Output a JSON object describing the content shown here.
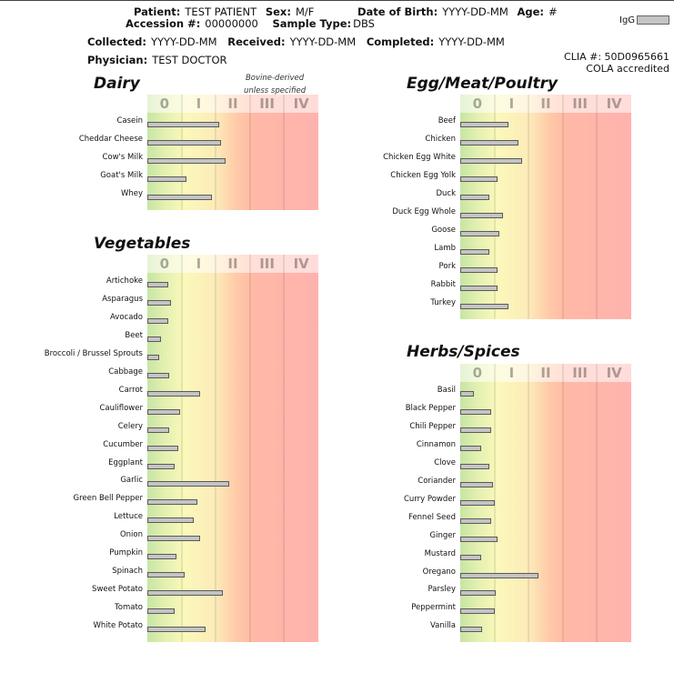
{
  "header": {
    "patient_label": "Patient:",
    "patient": "TEST PATIENT",
    "sex_label": "Sex:",
    "sex": "M/F",
    "dob_label": "Date of Birth:",
    "dob": "YYYY-DD-MM",
    "age_label": "Age:",
    "age": "#",
    "accession_label": "Accession #:",
    "accession": "00000000",
    "sample_type_label": "Sample Type:",
    "sample_type": "DBS",
    "collected_label": "Collected:",
    "collected": "YYYY-DD-MM",
    "received_label": "Received:",
    "received": "YYYY-DD-MM",
    "completed_label": "Completed:",
    "completed": "YYYY-DD-MM",
    "physician_label": "Physician:",
    "physician": "TEST DOCTOR",
    "legend_label": "IgG",
    "clia": "CLIA #: 50D0965661",
    "cola": "COLA accredited"
  },
  "colors": {
    "bar_fill": "#c4c4c4",
    "bar_border": "#5a5a5a",
    "class_0": "#c6e5a4",
    "class_i": "#fbf8ba",
    "class_ii": "#fcebb9",
    "class_iii_iv": "#ffb2ae"
  },
  "chart_data": [
    {
      "type": "bar",
      "title": "Dairy",
      "note": [
        "Bovine-derived",
        "unless specified"
      ],
      "classes": [
        "0",
        "I",
        "II",
        "III",
        "IV"
      ],
      "xlim": [
        0,
        5
      ],
      "series_name": "IgG",
      "categories": [
        "Casein",
        "Cheddar Cheese",
        "Cow's Milk",
        "Goat's Milk",
        "Whey"
      ],
      "values": [
        2.1,
        2.15,
        2.3,
        1.15,
        1.9
      ]
    },
    {
      "type": "bar",
      "title": "Egg/Meat/Poultry",
      "classes": [
        "0",
        "I",
        "II",
        "III",
        "IV"
      ],
      "xlim": [
        0,
        5
      ],
      "series_name": "IgG",
      "categories": [
        "Beef",
        "Chicken",
        "Chicken Egg White",
        "Chicken Egg Yolk",
        "Duck",
        "Duck Egg Whole",
        "Goose",
        "Lamb",
        "Pork",
        "Rabbit",
        "Turkey"
      ],
      "values": [
        1.4,
        1.7,
        1.8,
        1.1,
        0.85,
        1.25,
        1.15,
        0.85,
        1.1,
        1.1,
        1.4
      ]
    },
    {
      "type": "bar",
      "title": "Vegetables",
      "classes": [
        "0",
        "I",
        "II",
        "III",
        "IV"
      ],
      "xlim": [
        0,
        5
      ],
      "series_name": "IgG",
      "categories": [
        "Artichoke",
        "Asparagus",
        "Avocado",
        "Beet",
        "Broccoli / Brussel Sprouts",
        "Cabbage",
        "Carrot",
        "Cauliflower",
        "Celery",
        "Cucumber",
        "Eggplant",
        "Garlic",
        "Green Bell Pepper",
        "Lettuce",
        "Onion",
        "Pumpkin",
        "Spinach",
        "Sweet Potato",
        "Tomato",
        "White Potato"
      ],
      "values": [
        0.6,
        0.7,
        0.6,
        0.4,
        0.35,
        0.65,
        1.55,
        0.95,
        0.65,
        0.9,
        0.8,
        2.4,
        1.45,
        1.35,
        1.55,
        0.85,
        1.1,
        2.2,
        0.8,
        1.7
      ]
    },
    {
      "type": "bar",
      "title": "Herbs/Spices",
      "classes": [
        "0",
        "I",
        "II",
        "III",
        "IV"
      ],
      "xlim": [
        0,
        5
      ],
      "series_name": "IgG",
      "categories": [
        "Basil",
        "Black Pepper",
        "Chili Pepper",
        "Cinnamon",
        "Clove",
        "Coriander",
        "Curry Powder",
        "Fennel Seed",
        "Ginger",
        "Mustard",
        "Oregano",
        "Parsley",
        "Peppermint",
        "Vanilla"
      ],
      "values": [
        0.4,
        0.9,
        0.9,
        0.6,
        0.85,
        0.95,
        1.0,
        0.9,
        1.1,
        0.6,
        2.3,
        1.05,
        1.0,
        0.65
      ]
    }
  ]
}
